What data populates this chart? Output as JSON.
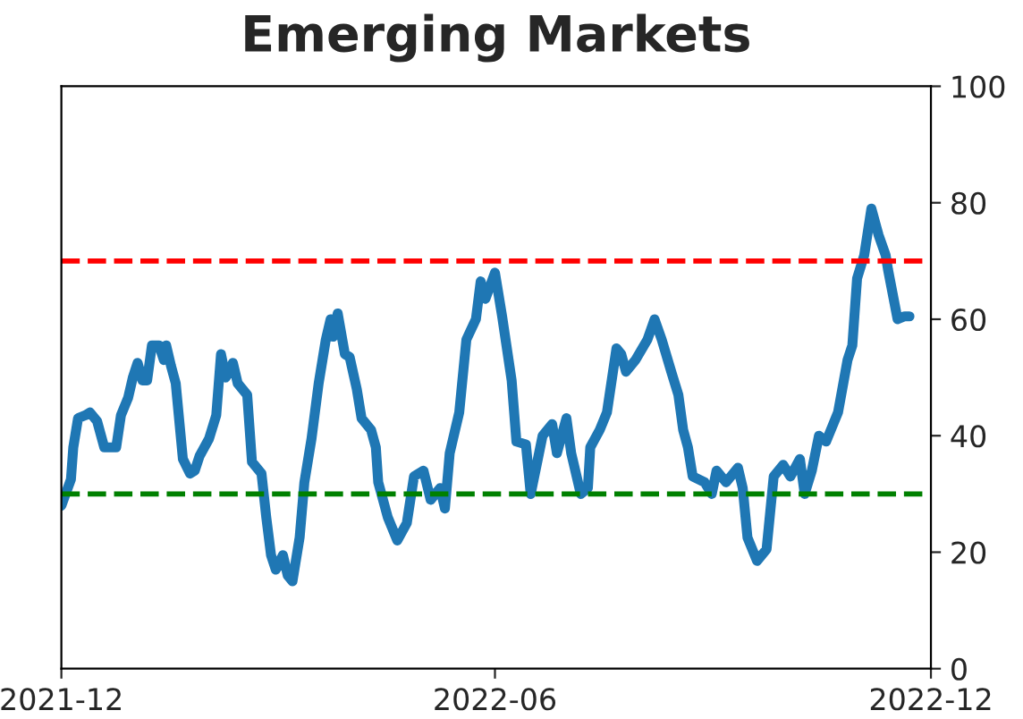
{
  "chart_data": {
    "type": "line",
    "title": "Emerging Markets",
    "x": [
      "2021-12-01",
      "2021-12-05",
      "2021-12-06",
      "2021-12-08",
      "2021-12-11",
      "2021-12-13",
      "2021-12-16",
      "2021-12-19",
      "2021-12-24",
      "2021-12-26",
      "2021-12-29",
      "2021-12-31",
      "2022-01-02",
      "2022-01-04",
      "2022-01-06",
      "2022-01-08",
      "2022-01-11",
      "2022-01-13",
      "2022-01-14",
      "2022-01-16",
      "2022-01-18",
      "2022-01-21",
      "2022-01-24",
      "2022-01-26",
      "2022-01-28",
      "2022-02-01",
      "2022-02-04",
      "2022-02-06",
      "2022-02-08",
      "2022-02-11",
      "2022-02-13",
      "2022-02-17",
      "2022-02-19",
      "2022-02-23",
      "2022-02-25",
      "2022-02-27",
      "2022-03-01",
      "2022-03-04",
      "2022-03-06",
      "2022-03-08",
      "2022-03-11",
      "2022-03-13",
      "2022-03-16",
      "2022-03-19",
      "2022-03-22",
      "2022-03-24",
      "2022-03-25",
      "2022-03-27",
      "2022-03-30",
      "2022-04-01",
      "2022-04-04",
      "2022-04-06",
      "2022-04-10",
      "2022-04-12",
      "2022-04-13",
      "2022-04-17",
      "2022-04-21",
      "2022-04-25",
      "2022-04-28",
      "2022-05-02",
      "2022-05-05",
      "2022-05-09",
      "2022-05-11",
      "2022-05-13",
      "2022-05-17",
      "2022-05-20",
      "2022-05-24",
      "2022-05-26",
      "2022-05-28",
      "2022-06-01",
      "2022-06-04",
      "2022-06-08",
      "2022-06-10",
      "2022-06-14",
      "2022-06-16",
      "2022-06-19",
      "2022-06-21",
      "2022-06-25",
      "2022-06-27",
      "2022-07-01",
      "2022-07-03",
      "2022-07-07",
      "2022-07-10",
      "2022-07-11",
      "2022-07-15",
      "2022-07-18",
      "2022-07-22",
      "2022-07-24",
      "2022-07-26",
      "2022-07-30",
      "2022-08-04",
      "2022-08-07",
      "2022-08-10",
      "2022-08-14",
      "2022-08-17",
      "2022-08-19",
      "2022-08-21",
      "2022-08-23",
      "2022-08-28",
      "2022-08-31",
      "2022-09-02",
      "2022-09-06",
      "2022-09-11",
      "2022-09-13",
      "2022-09-15",
      "2022-09-19",
      "2022-09-23",
      "2022-09-26",
      "2022-09-30",
      "2022-10-03",
      "2022-10-07",
      "2022-10-09",
      "2022-10-12",
      "2022-10-15",
      "2022-10-18",
      "2022-10-23",
      "2022-10-27",
      "2022-10-29",
      "2022-10-31",
      "2022-11-03",
      "2022-11-06",
      "2022-11-09",
      "2022-11-12",
      "2022-11-13",
      "2022-11-17",
      "2022-11-20",
      "2022-11-22"
    ],
    "series": [
      {
        "color": "#1f77b4",
        "values": [
          28,
          32.5,
          38,
          43,
          43.5,
          44,
          42.5,
          38,
          38,
          43.5,
          46.5,
          50,
          52.5,
          49.5,
          49.5,
          55.5,
          55.5,
          53,
          55.5,
          52,
          49,
          36,
          33.5,
          34,
          36.5,
          39.5,
          43.5,
          54,
          50,
          52.5,
          49,
          47,
          35.5,
          33.5,
          26,
          19.5,
          17,
          19.5,
          16,
          15,
          22.5,
          32,
          39.5,
          49,
          56.5,
          60,
          57,
          61,
          54,
          53.5,
          48,
          43,
          41,
          38,
          32,
          26,
          22,
          25,
          33,
          34,
          29,
          31,
          27.5,
          37,
          44,
          56.5,
          60,
          66.5,
          63.5,
          68,
          60.5,
          49.5,
          39,
          38.5,
          30,
          36,
          40,
          42,
          37,
          43,
          37,
          30,
          31,
          38,
          41,
          44,
          55,
          54,
          51,
          53,
          56.5,
          60,
          56.5,
          51,
          47,
          41,
          38,
          33,
          32,
          30,
          34,
          32,
          34.5,
          31,
          22.5,
          18.5,
          20.5,
          33,
          35,
          33,
          36,
          30,
          34,
          40,
          39,
          44,
          53,
          55.5,
          67,
          71,
          79,
          74.5,
          71,
          68.5,
          60,
          60.5,
          60.5
        ]
      }
    ],
    "xlim": [
      "2021-12",
      "2022-12"
    ],
    "xticks": [
      "2021-12",
      "2022-06",
      "2022-12"
    ],
    "ylim": [
      0,
      100
    ],
    "yticks": [
      0,
      20,
      40,
      60,
      80,
      100
    ],
    "ref_lines": [
      {
        "axis": "y",
        "value": 70,
        "color": "#ff0000",
        "line_style": "dashed"
      },
      {
        "axis": "y",
        "value": 30,
        "color": "#008000",
        "line_style": "dashed"
      }
    ],
    "grid": false,
    "legend": false
  }
}
